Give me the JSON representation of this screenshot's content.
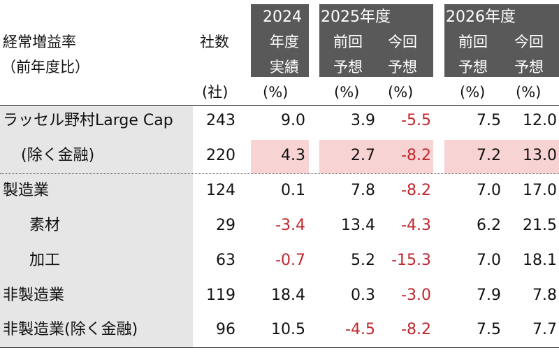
{
  "header": {
    "label_line1": "経常増益率",
    "label_line2": "（前年度比）",
    "companies": "社数",
    "y2024_top": "2024",
    "y2024_line1": "年度",
    "y2024_line2": "実績",
    "y2025_top": "2025年度",
    "y2026_top": "2026年度",
    "prev_line1": "前回",
    "cur_line1": "今回",
    "forecast_line2": "予想"
  },
  "units": {
    "companies": "(社)",
    "c2024": "(%)",
    "c2025_prev": "(%)",
    "c2025_cur": "(%)",
    "c2026_prev": "(%)",
    "c2026_cur": "(%)"
  },
  "rows": [
    {
      "name": "ラッセル野村Large Cap",
      "companies": "243",
      "v2024": "9.0",
      "v2025_prev": "3.9",
      "v2025_cur": "-5.5",
      "v2026_prev": "7.5",
      "v2026_cur": "12.0"
    },
    {
      "name": "(除く金融)",
      "companies": "220",
      "v2024": "4.3",
      "v2025_prev": "2.7",
      "v2025_cur": "-8.2",
      "v2026_prev": "7.2",
      "v2026_cur": "13.0"
    },
    {
      "name": "製造業",
      "companies": "124",
      "v2024": "0.1",
      "v2025_prev": "7.8",
      "v2025_cur": "-8.2",
      "v2026_prev": "7.0",
      "v2026_cur": "17.0"
    },
    {
      "name": "素材",
      "companies": "29",
      "v2024": "-3.4",
      "v2025_prev": "13.4",
      "v2025_cur": "-4.3",
      "v2026_prev": "6.2",
      "v2026_cur": "21.5"
    },
    {
      "name": "加工",
      "companies": "63",
      "v2024": "-0.7",
      "v2025_prev": "5.2",
      "v2025_cur": "-15.3",
      "v2026_prev": "7.0",
      "v2026_cur": "18.1"
    },
    {
      "name": "非製造業",
      "companies": "119",
      "v2024": "18.4",
      "v2025_prev": "0.3",
      "v2025_cur": "-3.0",
      "v2026_prev": "7.9",
      "v2026_cur": "7.8"
    },
    {
      "name": "非製造業(除く金融)",
      "companies": "96",
      "v2024": "10.5",
      "v2025_prev": "-4.5",
      "v2025_cur": "-8.2",
      "v2026_prev": "7.5",
      "v2026_cur": "7.7"
    }
  ],
  "colors": {
    "header_bg": "#595959",
    "negative": "#c0272d",
    "highlight": "#f8d3d3",
    "label_col_bg": "#e6e6e6"
  }
}
